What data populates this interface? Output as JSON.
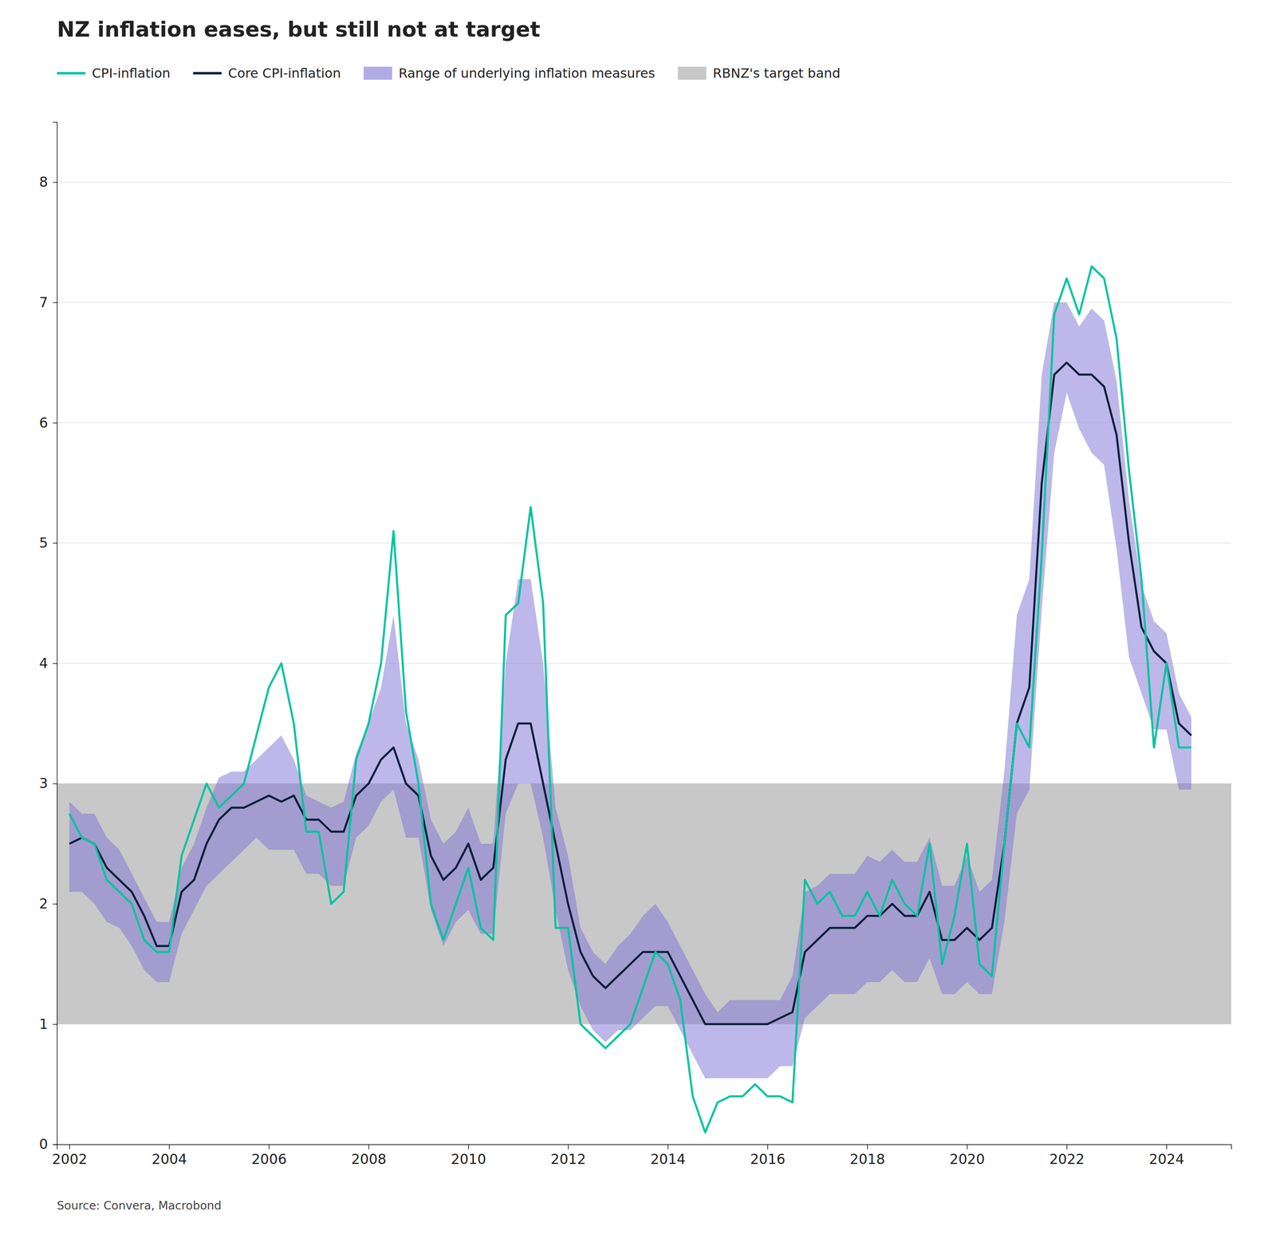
{
  "chart_data": {
    "type": "line",
    "title": "NZ inflation eases, but still not at target",
    "annotations": [
      "Source: Convera, Macrobond"
    ],
    "x": [
      2002.0,
      2002.25,
      2002.5,
      2002.75,
      2003.0,
      2003.25,
      2003.5,
      2003.75,
      2004.0,
      2004.25,
      2004.5,
      2004.75,
      2005.0,
      2005.25,
      2005.5,
      2005.75,
      2006.0,
      2006.25,
      2006.5,
      2006.75,
      2007.0,
      2007.25,
      2007.5,
      2007.75,
      2008.0,
      2008.25,
      2008.5,
      2008.75,
      2009.0,
      2009.25,
      2009.5,
      2009.75,
      2010.0,
      2010.25,
      2010.5,
      2010.75,
      2011.0,
      2011.25,
      2011.5,
      2011.75,
      2012.0,
      2012.25,
      2012.5,
      2012.75,
      2013.0,
      2013.25,
      2013.5,
      2013.75,
      2014.0,
      2014.25,
      2014.5,
      2014.75,
      2015.0,
      2015.25,
      2015.5,
      2015.75,
      2016.0,
      2016.25,
      2016.5,
      2016.75,
      2017.0,
      2017.25,
      2017.5,
      2017.75,
      2018.0,
      2018.25,
      2018.5,
      2018.75,
      2019.0,
      2019.25,
      2019.5,
      2019.75,
      2020.0,
      2020.25,
      2020.5,
      2020.75,
      2021.0,
      2021.25,
      2021.5,
      2021.75,
      2022.0,
      2022.25,
      2022.5,
      2022.75,
      2023.0,
      2023.25,
      2023.5,
      2023.75,
      2024.0,
      2024.25,
      2024.5
    ],
    "series": [
      {
        "name": "CPI-inflation",
        "type": "line",
        "color": "#00c4a0",
        "values": [
          2.75,
          2.55,
          2.5,
          2.2,
          2.1,
          2.0,
          1.7,
          1.6,
          1.6,
          2.4,
          2.7,
          3.0,
          2.8,
          2.9,
          3.0,
          3.4,
          3.8,
          4.0,
          3.5,
          2.6,
          2.6,
          2.0,
          2.1,
          3.2,
          3.5,
          4.0,
          5.1,
          3.6,
          3.0,
          2.0,
          1.7,
          2.0,
          2.3,
          1.8,
          1.7,
          4.4,
          4.5,
          5.3,
          4.5,
          1.8,
          1.8,
          1.0,
          0.9,
          0.8,
          0.9,
          1.0,
          1.3,
          1.6,
          1.5,
          1.2,
          0.4,
          0.1,
          0.35,
          0.4,
          0.4,
          0.5,
          0.4,
          0.4,
          0.35,
          2.2,
          2.0,
          2.1,
          1.9,
          1.9,
          2.1,
          1.9,
          2.2,
          2.0,
          1.9,
          2.5,
          1.5,
          1.9,
          2.5,
          1.5,
          1.4,
          2.5,
          3.5,
          3.3,
          4.9,
          6.9,
          7.2,
          6.9,
          7.3,
          7.2,
          6.7,
          5.6,
          4.7,
          3.3,
          4.0,
          3.3,
          3.3
        ]
      },
      {
        "name": "Core CPI-inflation",
        "type": "line",
        "color": "#0d1f3c",
        "values": [
          2.5,
          2.55,
          2.5,
          2.3,
          2.2,
          2.1,
          1.9,
          1.65,
          1.65,
          2.1,
          2.2,
          2.5,
          2.7,
          2.8,
          2.8,
          2.85,
          2.9,
          2.85,
          2.9,
          2.7,
          2.7,
          2.6,
          2.6,
          2.9,
          3.0,
          3.2,
          3.3,
          3.0,
          2.9,
          2.4,
          2.2,
          2.3,
          2.5,
          2.2,
          2.3,
          3.2,
          3.5,
          3.5,
          3.0,
          2.5,
          2.0,
          1.6,
          1.4,
          1.3,
          1.4,
          1.5,
          1.6,
          1.6,
          1.6,
          1.4,
          1.2,
          1.0,
          1.0,
          1.0,
          1.0,
          1.0,
          1.0,
          1.05,
          1.1,
          1.6,
          1.7,
          1.8,
          1.8,
          1.8,
          1.9,
          1.9,
          2.0,
          1.9,
          1.9,
          2.1,
          1.7,
          1.7,
          1.8,
          1.7,
          1.8,
          2.5,
          3.5,
          3.8,
          5.5,
          6.4,
          6.5,
          6.4,
          6.4,
          6.3,
          5.9,
          5.0,
          4.3,
          4.1,
          4.0,
          3.5,
          3.4
        ]
      },
      {
        "name": "Range of underlying inflation measures",
        "type": "area",
        "color": "#7b72d4",
        "upper": [
          2.85,
          2.75,
          2.75,
          2.55,
          2.45,
          2.25,
          2.05,
          1.85,
          1.85,
          2.3,
          2.5,
          2.8,
          3.05,
          3.1,
          3.1,
          3.2,
          3.3,
          3.4,
          3.2,
          2.9,
          2.85,
          2.8,
          2.85,
          3.25,
          3.5,
          3.8,
          4.4,
          3.5,
          3.2,
          2.7,
          2.5,
          2.6,
          2.8,
          2.5,
          2.5,
          4.0,
          4.7,
          4.7,
          4.0,
          2.8,
          2.4,
          1.8,
          1.6,
          1.5,
          1.65,
          1.75,
          1.9,
          2.0,
          1.85,
          1.65,
          1.45,
          1.25,
          1.1,
          1.2,
          1.2,
          1.2,
          1.2,
          1.2,
          1.4,
          2.1,
          2.15,
          2.25,
          2.25,
          2.25,
          2.4,
          2.35,
          2.45,
          2.35,
          2.35,
          2.55,
          2.15,
          2.15,
          2.4,
          2.1,
          2.2,
          3.1,
          4.4,
          4.7,
          6.4,
          7.0,
          7.0,
          6.8,
          6.95,
          6.85,
          6.35,
          5.35,
          4.65,
          4.35,
          4.25,
          3.75,
          3.55
        ],
        "lower": [
          2.1,
          2.1,
          2.0,
          1.85,
          1.8,
          1.65,
          1.45,
          1.35,
          1.35,
          1.75,
          1.95,
          2.15,
          2.25,
          2.35,
          2.45,
          2.55,
          2.45,
          2.45,
          2.45,
          2.25,
          2.25,
          2.15,
          2.15,
          2.55,
          2.65,
          2.85,
          2.95,
          2.55,
          2.55,
          1.95,
          1.65,
          1.85,
          1.95,
          1.75,
          1.75,
          2.75,
          3.0,
          3.0,
          2.55,
          1.95,
          1.45,
          1.15,
          0.95,
          0.85,
          0.95,
          0.95,
          1.05,
          1.15,
          1.15,
          0.95,
          0.75,
          0.55,
          0.55,
          0.55,
          0.55,
          0.55,
          0.55,
          0.65,
          0.65,
          1.05,
          1.15,
          1.25,
          1.25,
          1.25,
          1.35,
          1.35,
          1.45,
          1.35,
          1.35,
          1.55,
          1.25,
          1.25,
          1.35,
          1.25,
          1.25,
          1.85,
          2.75,
          2.95,
          4.45,
          5.75,
          6.25,
          5.95,
          5.75,
          5.65,
          4.95,
          4.05,
          3.75,
          3.45,
          3.45,
          2.95,
          2.95
        ]
      },
      {
        "name": "RBNZ's target band",
        "type": "band",
        "color": "#c8c8c8",
        "lower": 1.0,
        "upper": 3.0
      }
    ],
    "xlim": [
      2001.75,
      2025.3
    ],
    "xticks": [
      2002,
      2004,
      2006,
      2008,
      2010,
      2012,
      2014,
      2016,
      2018,
      2020,
      2022,
      2024
    ],
    "ylim": [
      0,
      8.5
    ],
    "yticks": [
      0,
      1,
      2,
      3,
      4,
      5,
      6,
      7,
      8
    ],
    "grid": true,
    "legend": "top"
  }
}
